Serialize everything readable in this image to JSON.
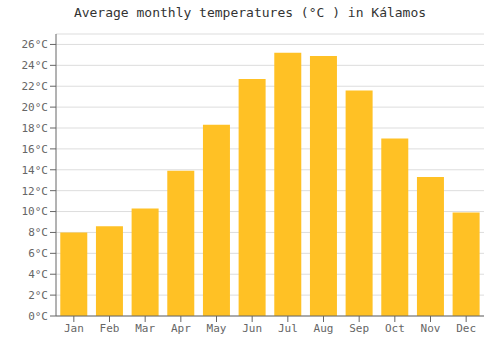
{
  "chart_data": {
    "type": "bar",
    "title": "Average monthly temperatures (°C ) in Kálamos",
    "categories": [
      "Jan",
      "Feb",
      "Mar",
      "Apr",
      "May",
      "Jun",
      "Jul",
      "Aug",
      "Sep",
      "Oct",
      "Nov",
      "Dec"
    ],
    "values": [
      8.0,
      8.6,
      10.3,
      13.9,
      18.3,
      22.7,
      25.2,
      24.9,
      21.6,
      17.0,
      13.3,
      9.9
    ],
    "color": "#FFC125",
    "ylim": [
      0,
      27
    ],
    "yticks": [
      {
        "value": 0,
        "label": "0°C"
      },
      {
        "value": 2,
        "label": "2°C"
      },
      {
        "value": 4,
        "label": "4°C"
      },
      {
        "value": 6,
        "label": "6°C"
      },
      {
        "value": 8,
        "label": "8°C"
      },
      {
        "value": 10,
        "label": "10°C"
      },
      {
        "value": 12,
        "label": "12°C"
      },
      {
        "value": 14,
        "label": "14°C"
      },
      {
        "value": 16,
        "label": "16°C"
      },
      {
        "value": 18,
        "label": "18°C"
      },
      {
        "value": 20,
        "label": "20°C"
      },
      {
        "value": 22,
        "label": "22°C"
      },
      {
        "value": 24,
        "label": "24°C"
      },
      {
        "value": 26,
        "label": "26°C"
      }
    ],
    "grid": true
  }
}
